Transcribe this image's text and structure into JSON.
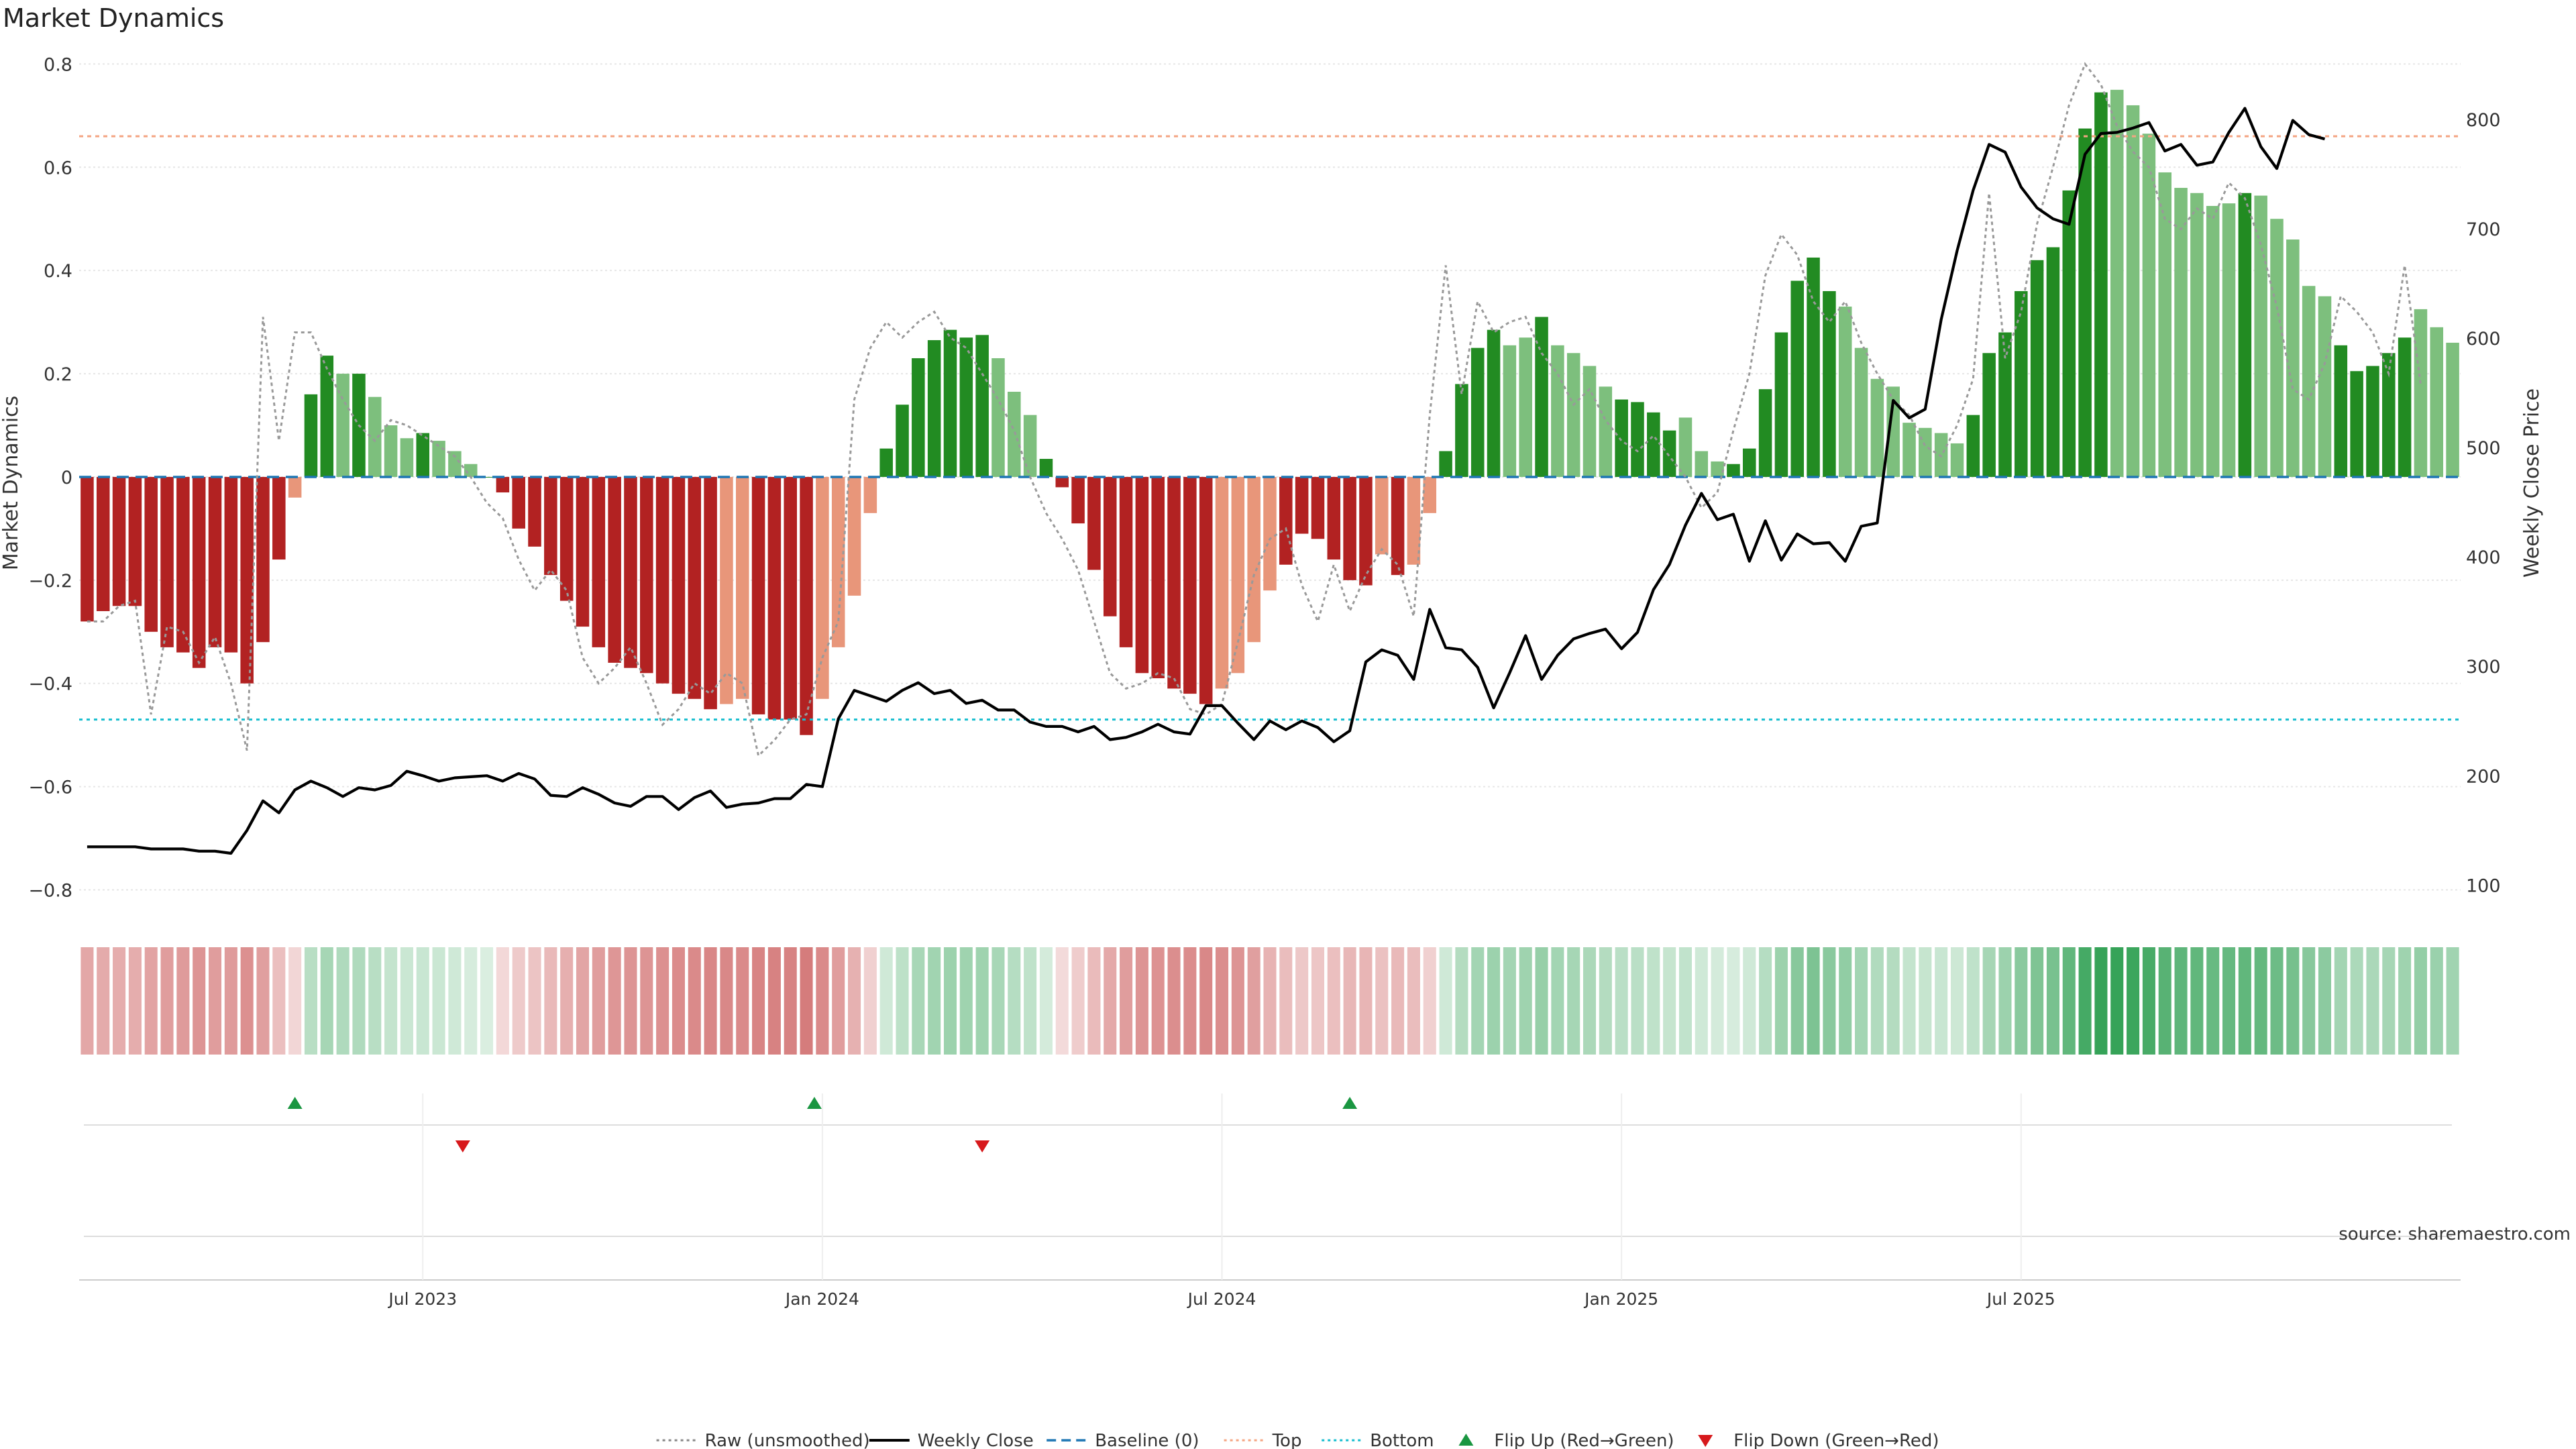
{
  "title": "Market Dynamics",
  "source": "source: sharemaestro.com",
  "colors": {
    "strong_green": "#228b22",
    "light_green": "#7dbf7d",
    "strong_red": "#b22222",
    "light_red": "#e8967a",
    "raw": "#999999",
    "close": "#000000",
    "baseline": "#1f77b4",
    "top": "#f4a582",
    "bottom": "#17becf",
    "flip_up": "#1a9641",
    "flip_down": "#d7191c"
  },
  "chart_data": {
    "type": "bar",
    "xlabel": "",
    "ylabel": "Market Dynamics",
    "y2label": "Weekly Close Price",
    "ylim": [
      -0.85,
      0.82
    ],
    "y2lim": [
      72,
      860
    ],
    "yticks": [
      "0.8",
      "0.6",
      "0.4",
      "0.2",
      "0",
      "−0.2",
      "−0.4",
      "−0.6",
      "−0.8"
    ],
    "ytick_values": [
      0.8,
      0.6,
      0.4,
      0.2,
      0,
      -0.2,
      -0.4,
      -0.6,
      -0.8
    ],
    "y2ticks": [
      "800",
      "700",
      "600",
      "500",
      "400",
      "300",
      "200",
      "100"
    ],
    "y2tick_values": [
      800,
      700,
      600,
      500,
      400,
      300,
      200,
      100
    ],
    "xticks": [
      "Jul 2023",
      "Jan 2024",
      "Jul 2024",
      "Jan 2025",
      "Jul 2025"
    ],
    "xtick_weeks": [
      21.5,
      46.5,
      71.5,
      96.5,
      121.5
    ],
    "grid": true,
    "legend_position": "bottom-center",
    "top_level": 0.66,
    "bottom_level": -0.47,
    "smoothed": [
      -0.28,
      -0.26,
      -0.25,
      -0.25,
      -0.3,
      -0.33,
      -0.34,
      -0.37,
      -0.33,
      -0.34,
      -0.4,
      -0.32,
      -0.16,
      -0.04,
      0.16,
      0.235,
      0.2,
      0.2,
      0.155,
      0.1,
      0.075,
      0.085,
      0.07,
      0.05,
      0.025,
      0.0,
      -0.03,
      -0.1,
      -0.135,
      -0.19,
      -0.24,
      -0.29,
      -0.33,
      -0.36,
      -0.37,
      -0.38,
      -0.4,
      -0.42,
      -0.43,
      -0.45,
      -0.44,
      -0.43,
      -0.46,
      -0.47,
      -0.47,
      -0.5,
      -0.43,
      -0.33,
      -0.23,
      -0.07,
      0.055,
      0.14,
      0.23,
      0.265,
      0.285,
      0.27,
      0.275,
      0.23,
      0.165,
      0.12,
      0.035,
      -0.02,
      -0.09,
      -0.18,
      -0.27,
      -0.33,
      -0.38,
      -0.39,
      -0.41,
      -0.42,
      -0.44,
      -0.41,
      -0.38,
      -0.32,
      -0.22,
      -0.17,
      -0.11,
      -0.12,
      -0.16,
      -0.2,
      -0.21,
      -0.15,
      -0.19,
      -0.17,
      -0.07,
      0.05,
      0.18,
      0.25,
      0.285,
      0.255,
      0.27,
      0.31,
      0.255,
      0.24,
      0.215,
      0.175,
      0.15,
      0.145,
      0.125,
      0.09,
      0.115,
      0.05,
      0.03,
      0.025,
      0.055,
      0.17,
      0.28,
      0.38,
      0.425,
      0.36,
      0.33,
      0.25,
      0.19,
      0.175,
      0.105,
      0.095,
      0.085,
      0.065,
      0.12,
      0.24,
      0.28,
      0.36,
      0.42,
      0.445,
      0.555,
      0.675,
      0.745,
      0.75,
      0.72,
      0.665,
      0.59,
      0.56,
      0.55,
      0.525,
      0.53,
      0.55,
      0.545,
      0.5,
      0.46,
      0.37,
      0.35,
      0.255,
      0.205,
      0.215,
      0.24,
      0.27,
      0.325,
      0.29,
      0.26
    ],
    "strength": [
      2,
      2,
      2,
      2,
      2,
      2,
      2,
      2,
      2,
      2,
      2,
      2,
      2,
      1,
      2,
      2,
      1,
      2,
      1,
      1,
      1,
      2,
      1,
      1,
      1,
      2,
      2,
      2,
      2,
      2,
      2,
      2,
      2,
      2,
      2,
      2,
      2,
      2,
      2,
      2,
      1,
      1,
      2,
      2,
      2,
      2,
      1,
      1,
      1,
      1,
      2,
      2,
      2,
      2,
      2,
      2,
      2,
      1,
      1,
      1,
      2,
      2,
      2,
      2,
      2,
      2,
      2,
      2,
      2,
      2,
      2,
      1,
      1,
      1,
      1,
      2,
      2,
      2,
      2,
      2,
      2,
      1,
      2,
      1,
      1,
      2,
      2,
      2,
      2,
      1,
      1,
      2,
      1,
      1,
      1,
      1,
      2,
      2,
      2,
      2,
      1,
      1,
      1,
      2,
      2,
      2,
      2,
      2,
      2,
      2,
      1,
      1,
      1,
      1,
      1,
      1,
      1,
      1,
      2,
      2,
      2,
      2,
      2,
      2,
      2,
      2,
      2,
      1,
      1,
      1,
      1,
      1,
      1,
      1,
      1,
      2,
      1,
      1,
      1,
      1,
      1,
      2,
      2,
      2,
      2,
      2,
      1,
      1
    ],
    "raw": [
      -0.28,
      -0.28,
      -0.25,
      -0.24,
      -0.46,
      -0.29,
      -0.3,
      -0.36,
      -0.31,
      -0.4,
      -0.53,
      0.31,
      0.07,
      0.28,
      0.28,
      0.21,
      0.15,
      0.1,
      0.07,
      0.11,
      0.1,
      0.08,
      0.06,
      0.04,
      0.0,
      -0.05,
      -0.08,
      -0.16,
      -0.22,
      -0.18,
      -0.22,
      -0.35,
      -0.4,
      -0.37,
      -0.33,
      -0.4,
      -0.48,
      -0.45,
      -0.4,
      -0.42,
      -0.38,
      -0.4,
      -0.54,
      -0.51,
      -0.47,
      -0.46,
      -0.35,
      -0.28,
      0.15,
      0.25,
      0.3,
      0.27,
      0.3,
      0.32,
      0.27,
      0.25,
      0.2,
      0.15,
      0.09,
      0.0,
      -0.07,
      -0.12,
      -0.18,
      -0.28,
      -0.38,
      -0.41,
      -0.4,
      -0.38,
      -0.39,
      -0.45,
      -0.46,
      -0.44,
      -0.32,
      -0.19,
      -0.12,
      -0.1,
      -0.21,
      -0.28,
      -0.17,
      -0.26,
      -0.19,
      -0.14,
      -0.17,
      -0.27,
      0.12,
      0.41,
      0.16,
      0.34,
      0.28,
      0.3,
      0.31,
      0.24,
      0.2,
      0.14,
      0.17,
      0.11,
      0.07,
      0.05,
      0.08,
      0.04,
      0.0,
      -0.06,
      -0.03,
      0.09,
      0.2,
      0.39,
      0.47,
      0.43,
      0.34,
      0.3,
      0.34,
      0.26,
      0.2,
      0.15,
      0.12,
      0.06,
      0.04,
      0.1,
      0.19,
      0.55,
      0.23,
      0.32,
      0.49,
      0.6,
      0.72,
      0.8,
      0.76,
      0.68,
      0.63,
      0.6,
      0.5,
      0.48,
      0.52,
      0.5,
      0.57,
      0.54,
      0.45,
      0.33,
      0.17,
      0.15,
      0.22,
      0.35,
      0.32,
      0.28,
      0.2,
      0.41,
      0.18
    ],
    "close": [
      135,
      135,
      135,
      135,
      133,
      133,
      133,
      131,
      131,
      129,
      150,
      177,
      166,
      187,
      195,
      189,
      181,
      189,
      187,
      191,
      204,
      200,
      195,
      198,
      199,
      200,
      195,
      202,
      197,
      182,
      181,
      189,
      183,
      175,
      172,
      181,
      181,
      169,
      180,
      186,
      171,
      174,
      175,
      179,
      179,
      192,
      190,
      252,
      278,
      273,
      268,
      278,
      285,
      275,
      278,
      266,
      269,
      260,
      260,
      249,
      245,
      245,
      240,
      245,
      233,
      235,
      240,
      247,
      240,
      238,
      264,
      264,
      248,
      233,
      250,
      242,
      250,
      244,
      231,
      241,
      304,
      315,
      310,
      288,
      352,
      317,
      315,
      299,
      262,
      294,
      328,
      288,
      310,
      325,
      330,
      334,
      316,
      331,
      370,
      393,
      429,
      458,
      434,
      439,
      396,
      433,
      397,
      421,
      412,
      413,
      396,
      428,
      431,
      543,
      527,
      535,
      617,
      680,
      735,
      777,
      770,
      738,
      719,
      709,
      704,
      768,
      787,
      788,
      792,
      797,
      771,
      777,
      758,
      761,
      788,
      810,
      775,
      755,
      799,
      786,
      782
    ],
    "flip_up": [
      13.5,
      46,
      79.5
    ],
    "flip_down": [
      24,
      56.5
    ]
  },
  "legend": [
    {
      "label": "Raw (unsmoothed)",
      "kind": "dotted",
      "color": "#888888"
    },
    {
      "label": "Weekly Close",
      "kind": "solid",
      "color": "#000000"
    },
    {
      "label": "Baseline (0)",
      "kind": "dashed",
      "color": "#1f77b4"
    },
    {
      "label": "Top",
      "kind": "dotted",
      "color": "#f4a582"
    },
    {
      "label": "Bottom",
      "kind": "dotted",
      "color": "#17becf"
    },
    {
      "label": "Flip Up (Red→Green)",
      "kind": "tri-up",
      "color": "#1a9641"
    },
    {
      "label": "Flip Down (Green→Red)",
      "kind": "tri-down",
      "color": "#d7191c"
    }
  ]
}
